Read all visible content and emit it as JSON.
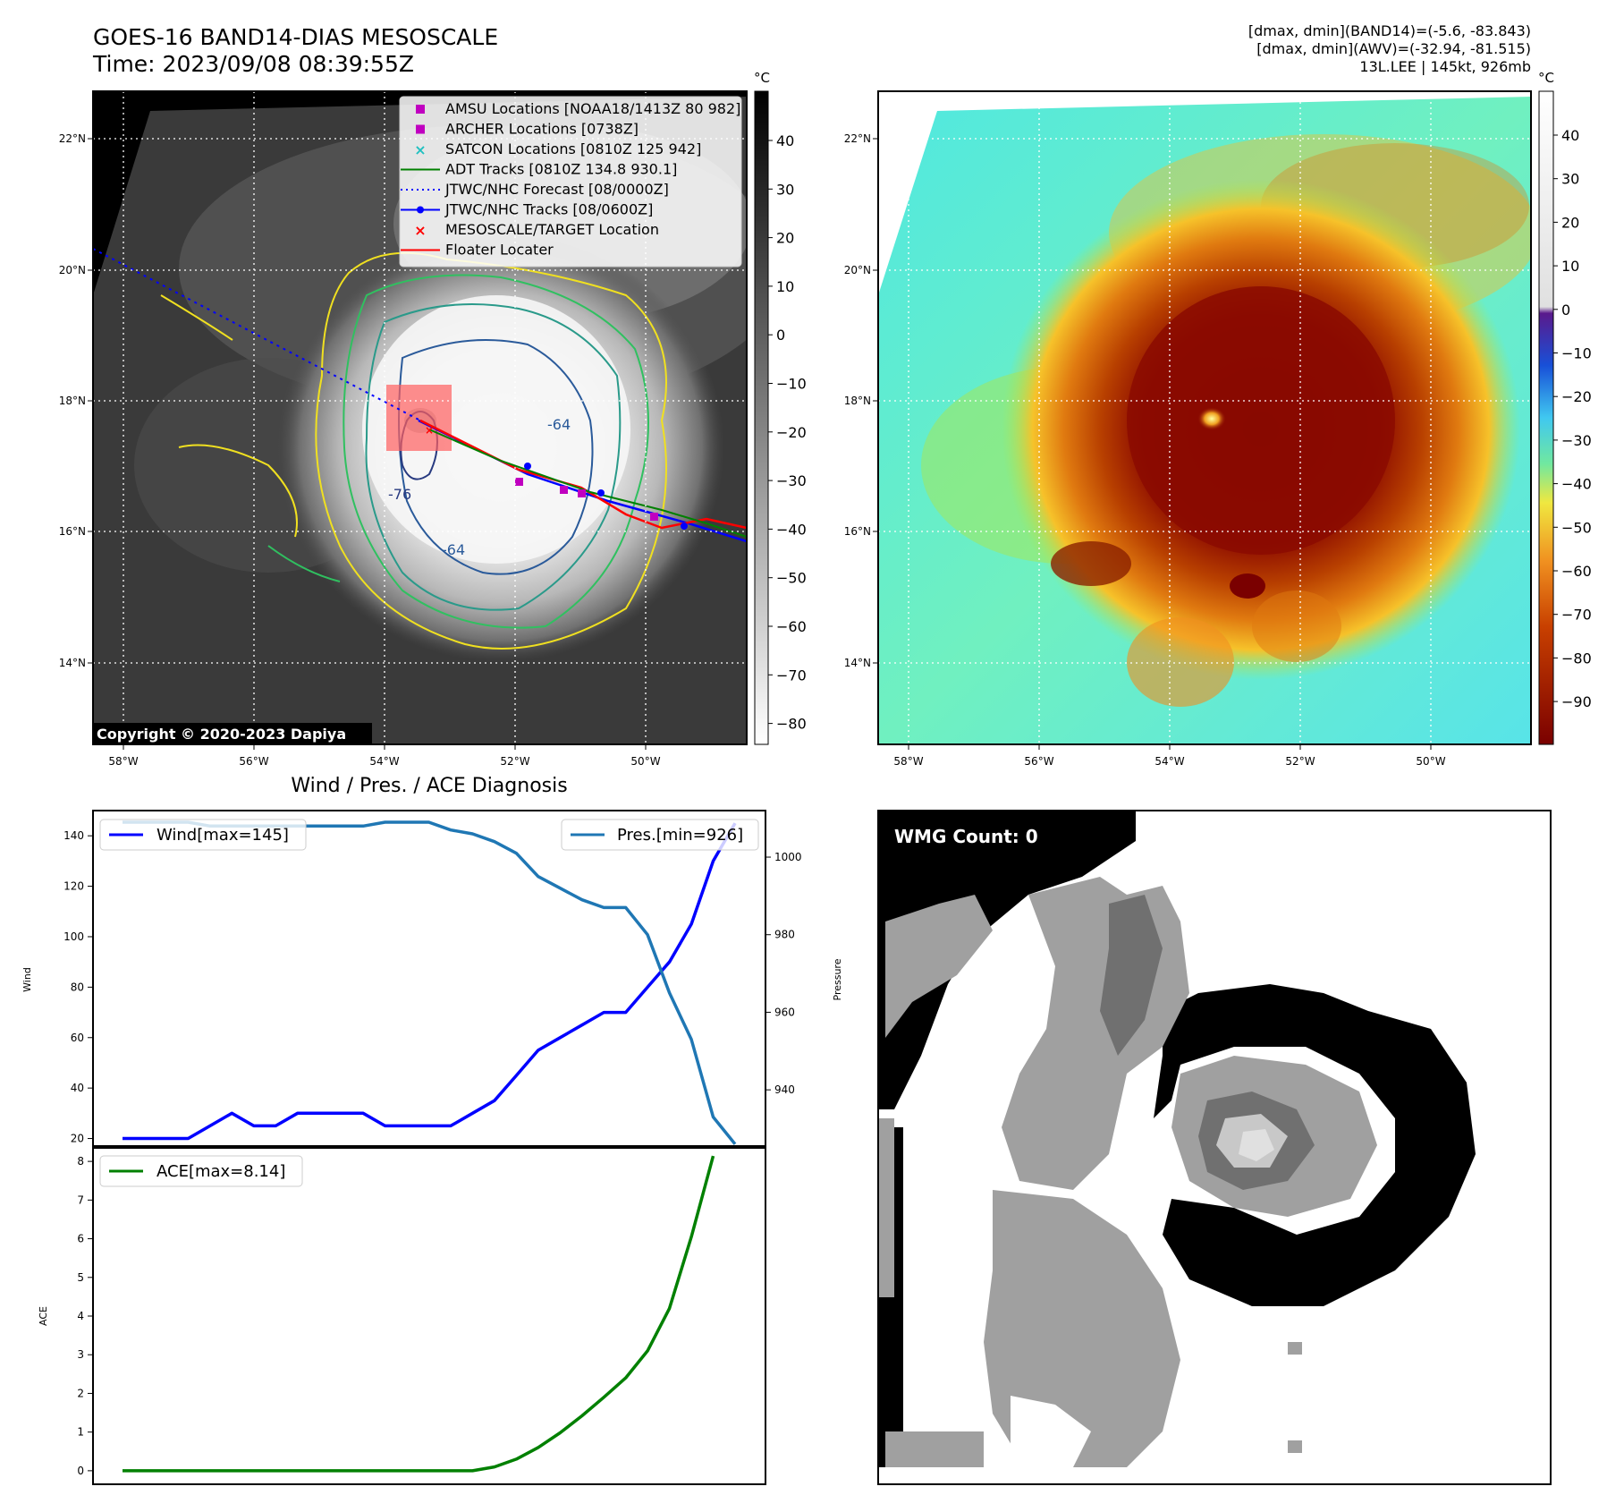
{
  "header": {
    "title_line1": "GOES-16 BAND14-DIAS MESOSCALE",
    "title_line2": "Time: 2023/09/08 08:39:55Z",
    "stats_line1": "[dmax, dmin](BAND14)=(-5.6, -83.843)",
    "stats_line2": "[dmax, dmin](AWV)=(-32.94, -81.515)",
    "stats_line3": "13L.LEE | 145kt, 926mb",
    "copyright": "Copyright © 2020-2023 Dapiya"
  },
  "map": {
    "lat_ticks": [
      "22°N",
      "20°N",
      "18°N",
      "16°N",
      "14°N"
    ],
    "lon_ticks": [
      "58°W",
      "56°W",
      "54°W",
      "52°W",
      "50°W"
    ],
    "contour_labels": [
      "-64",
      "-64",
      "-76"
    ],
    "legend": [
      {
        "label": "AMSU Locations [NOAA18/1413Z 80 982]",
        "marker": "square",
        "color": "#c000c0"
      },
      {
        "label": "ARCHER Locations [0738Z]",
        "marker": "square",
        "color": "#c000c0"
      },
      {
        "label": "SATCON Locations [0810Z 125 942]",
        "marker": "x",
        "color": "#20c0c0"
      },
      {
        "label": "ADT Tracks [0810Z 134.8 930.1]",
        "marker": "line",
        "color": "#008000"
      },
      {
        "label": "JTWC/NHC Forecast [08/0000Z]",
        "marker": "dotted",
        "color": "#0000ff"
      },
      {
        "label": "JTWC/NHC Tracks [08/0600Z]",
        "marker": "line-dot",
        "color": "#0000ff"
      },
      {
        "label": "MESOSCALE/TARGET Location",
        "marker": "x",
        "color": "#ff0000"
      },
      {
        "label": "Floater Locater",
        "marker": "line",
        "color": "#ff0000"
      }
    ],
    "cbar_unit": "°C",
    "cbar_ticks_gray": [
      "40",
      "30",
      "20",
      "10",
      "0",
      "−10",
      "−20",
      "−30",
      "−40",
      "−50",
      "−60",
      "−70",
      "−80"
    ],
    "cbar_ticks_color": [
      "40",
      "30",
      "20",
      "10",
      "0",
      "−10",
      "−20",
      "−30",
      "−40",
      "−50",
      "−60",
      "−70",
      "−80",
      "−90"
    ]
  },
  "wmg": {
    "label": "WMG Count: 0"
  },
  "chart_data": [
    {
      "type": "line",
      "title": "Wind / Pres. / ACE Diagnosis",
      "ylabel": "Wind",
      "ylabel_right": "Pressure",
      "ylim": [
        17,
        150
      ],
      "ylim_right": [
        925.5,
        1012
      ],
      "yticks": [
        20,
        40,
        60,
        80,
        100,
        120,
        140
      ],
      "yticks_right": [
        940,
        960,
        980,
        1000
      ],
      "series": [
        {
          "name": "Wind[max=145]",
          "color": "#0000ff",
          "values": [
            20,
            20,
            20,
            20,
            25,
            30,
            25,
            25,
            30,
            30,
            30,
            30,
            25,
            25,
            25,
            25,
            30,
            35,
            45,
            55,
            60,
            65,
            70,
            70,
            80,
            90,
            105,
            130,
            145
          ]
        },
        {
          "name": "Pres.[min=926]",
          "color": "#1f77b4",
          "axis": "right",
          "values": [
            1009,
            1009,
            1009,
            1009,
            1008,
            1008,
            1008,
            1008,
            1008,
            1008,
            1008,
            1008,
            1009,
            1009,
            1009,
            1007,
            1006,
            1004,
            1001,
            995,
            992,
            989,
            987,
            987,
            980,
            965,
            953,
            933,
            926
          ]
        }
      ]
    },
    {
      "type": "line",
      "ylabel": "ACE",
      "ylim": [
        -0.35,
        8.35
      ],
      "yticks": [
        0,
        1,
        2,
        3,
        4,
        5,
        6,
        7,
        8
      ],
      "series": [
        {
          "name": "ACE[max=8.14]",
          "color": "#008000",
          "values": [
            0,
            0,
            0,
            0,
            0,
            0,
            0,
            0,
            0,
            0,
            0,
            0,
            0,
            0,
            0,
            0,
            0,
            0.1,
            0.3,
            0.6,
            0.98,
            1.42,
            1.9,
            2.4,
            3.1,
            4.2,
            6.05,
            8.14
          ]
        }
      ]
    }
  ]
}
